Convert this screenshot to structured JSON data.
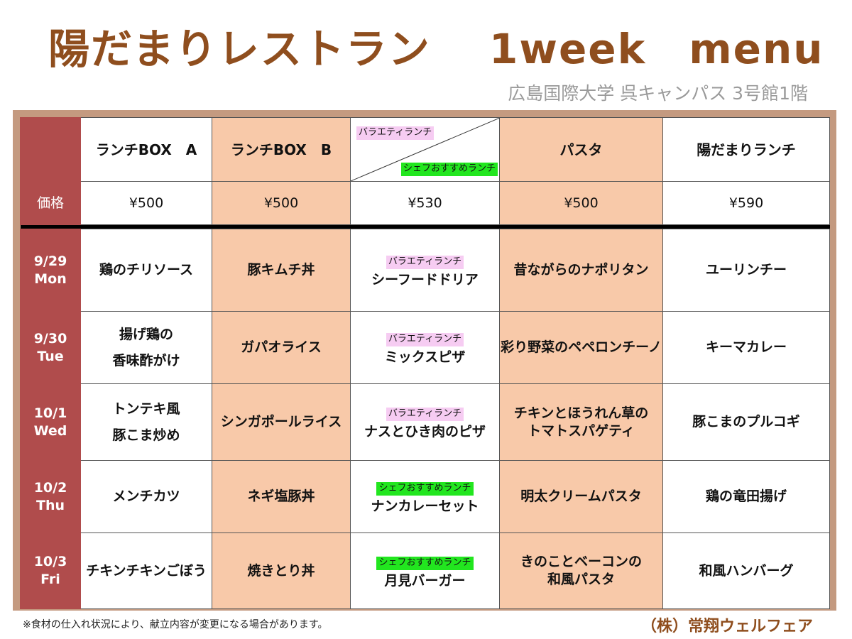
{
  "title": "陽だまりレストラン　 1week　menu",
  "subtitle": "広島国際大学 呉キャンパス 3号館1階",
  "columns": [
    {
      "label": "ランチBOX　A"
    },
    {
      "label": "ランチBOX　B"
    },
    {
      "tag_top": "バラエティランチ",
      "tag_bottom": "シェフおすすめランチ"
    },
    {
      "label": "パスタ"
    },
    {
      "label": "陽だまりランチ"
    }
  ],
  "price_label": "価格",
  "prices": [
    "¥500",
    "¥500",
    "¥530",
    "¥500",
    "¥590"
  ],
  "tags": {
    "variety": "バラエティランチ",
    "chef": "シェフおすすめランチ"
  },
  "days": [
    {
      "date": "9/29",
      "dow": "Mon",
      "a": "鶏のチリソース",
      "b": "豚キムチ丼",
      "tag": "バラエティランチ",
      "c": "シーフードドリア",
      "pasta": "昔ながらのナポリタン",
      "hi": "ユーリンチー"
    },
    {
      "date": "9/30",
      "dow": "Tue",
      "a": "揚げ鶏の\n香味酢がけ",
      "b": "ガパオライス",
      "tag": "バラエティランチ",
      "c": "ミックスピザ",
      "pasta": "彩り野菜のペペロンチーノ",
      "hi": "キーマカレー"
    },
    {
      "date": "10/1",
      "dow": "Wed",
      "a": "トンテキ風\n豚こま炒め",
      "b": "シンガポールライス",
      "tag": "バラエティランチ",
      "c": "ナスとひき肉のピザ",
      "pasta": "チキンとほうれん草の\nトマトスパゲティ",
      "hi": "豚こまのプルコギ"
    },
    {
      "date": "10/2",
      "dow": "Thu",
      "a": "メンチカツ",
      "b": "ネギ塩豚丼",
      "tag": "シェフおすすめランチ",
      "c": "ナンカレーセット",
      "pasta": "明太クリームパスタ",
      "hi": "鶏の竜田揚げ"
    },
    {
      "date": "10/3",
      "dow": "Fri",
      "a": "チキンチキンごぼう",
      "b": "焼きとり丼",
      "tag": "シェフおすすめランチ",
      "c": "月見バーガー",
      "pasta": "きのことベーコンの\n和風パスタ",
      "hi": "和風ハンバーグ"
    }
  ],
  "colors": {
    "accent_brown": "#8f4e1e",
    "day_column": "#b04c4c",
    "orange_cell": "#f8c9a9",
    "variety_tag": "#f6ccf2",
    "chef_tag": "#22e61f"
  },
  "footer": {
    "note": "※食材の仕入れ状況により、献立内容が変更になる場合があります。",
    "company": "（株）常翔ウェルフェア"
  }
}
